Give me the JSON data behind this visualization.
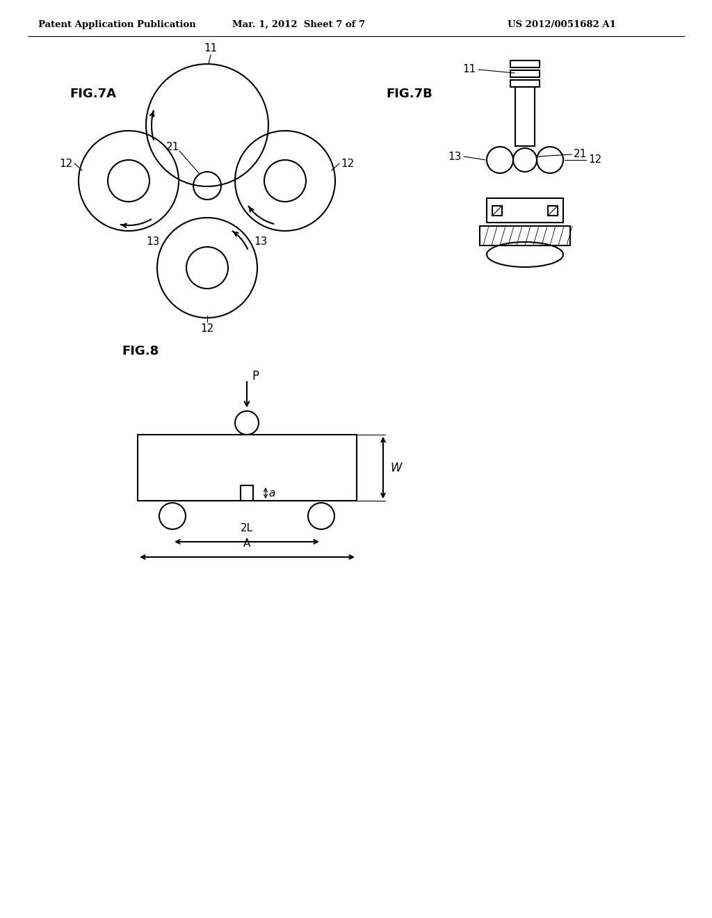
{
  "bg_color": "#ffffff",
  "header_left": "Patent Application Publication",
  "header_mid": "Mar. 1, 2012  Sheet 7 of 7",
  "header_right": "US 2012/0051682 A1",
  "fig7a_label": "FIG.7A",
  "fig7b_label": "FIG.7B",
  "fig8_label": "FIG.8",
  "line_color": "#000000",
  "line_width": 1.5
}
